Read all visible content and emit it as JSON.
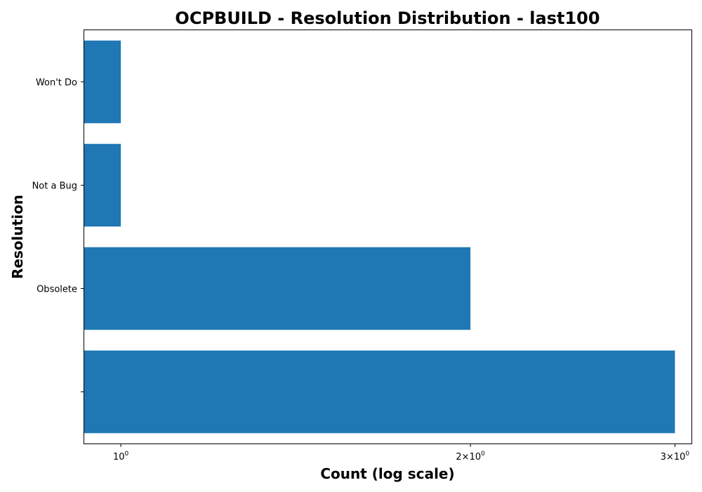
{
  "chart_data": {
    "type": "bar",
    "orientation": "horizontal",
    "title": "OCPBUILD - Resolution Distribution - last100",
    "xlabel": "Count (log scale)",
    "ylabel": "Resolution",
    "x_scale": "log",
    "xlim": [
      0.93,
      3.1
    ],
    "x_ticks": [
      {
        "value": 1,
        "base": "10",
        "exp": "0"
      },
      {
        "value": 2,
        "base": "2×10",
        "exp": "0"
      },
      {
        "value": 3,
        "base": "3×10",
        "exp": "0"
      }
    ],
    "categories": [
      "Won't Do",
      "Not a Bug",
      "Obsolete",
      ""
    ],
    "values": [
      1,
      1,
      2,
      3
    ],
    "color": "#1f77b4"
  }
}
